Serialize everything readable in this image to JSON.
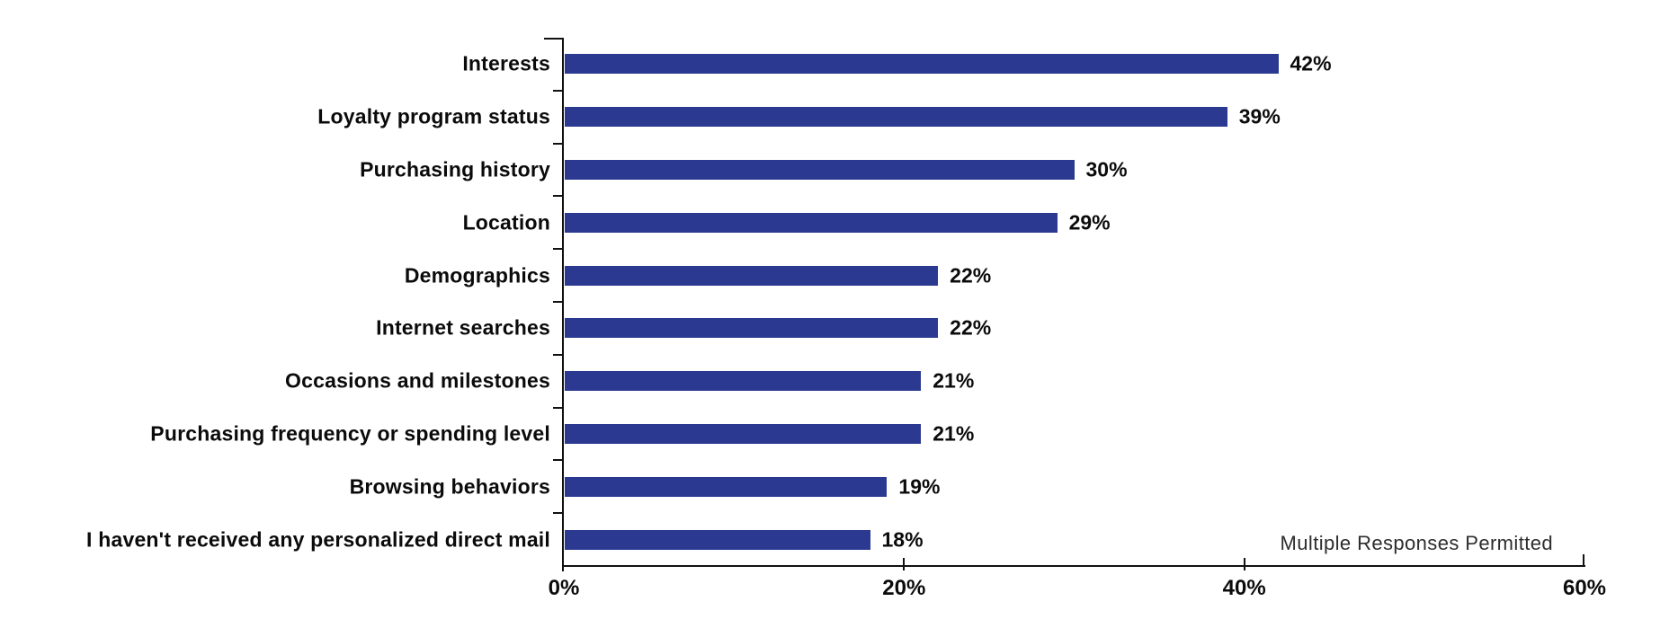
{
  "chart_data": {
    "type": "bar",
    "orientation": "horizontal",
    "categories": [
      "Interests",
      "Loyalty program status",
      "Purchasing history",
      "Location",
      "Demographics",
      "Internet searches",
      "Occasions and milestones",
      "Purchasing frequency or spending level",
      "Browsing behaviors",
      "I haven't received any personalized direct mail"
    ],
    "values": [
      42,
      39,
      30,
      29,
      22,
      22,
      21,
      21,
      19,
      18
    ],
    "unit": "%",
    "xlim": [
      0,
      60
    ],
    "x_ticks": [
      "0%",
      "20%",
      "40%",
      "60%"
    ],
    "x_tick_values": [
      0,
      20,
      40,
      60
    ],
    "grid": false,
    "legend": "none",
    "annotation": "Multiple Responses Permitted",
    "bar_color": "#2b3990",
    "axis_color": "#111111",
    "text_color": "#0b0b0b"
  }
}
